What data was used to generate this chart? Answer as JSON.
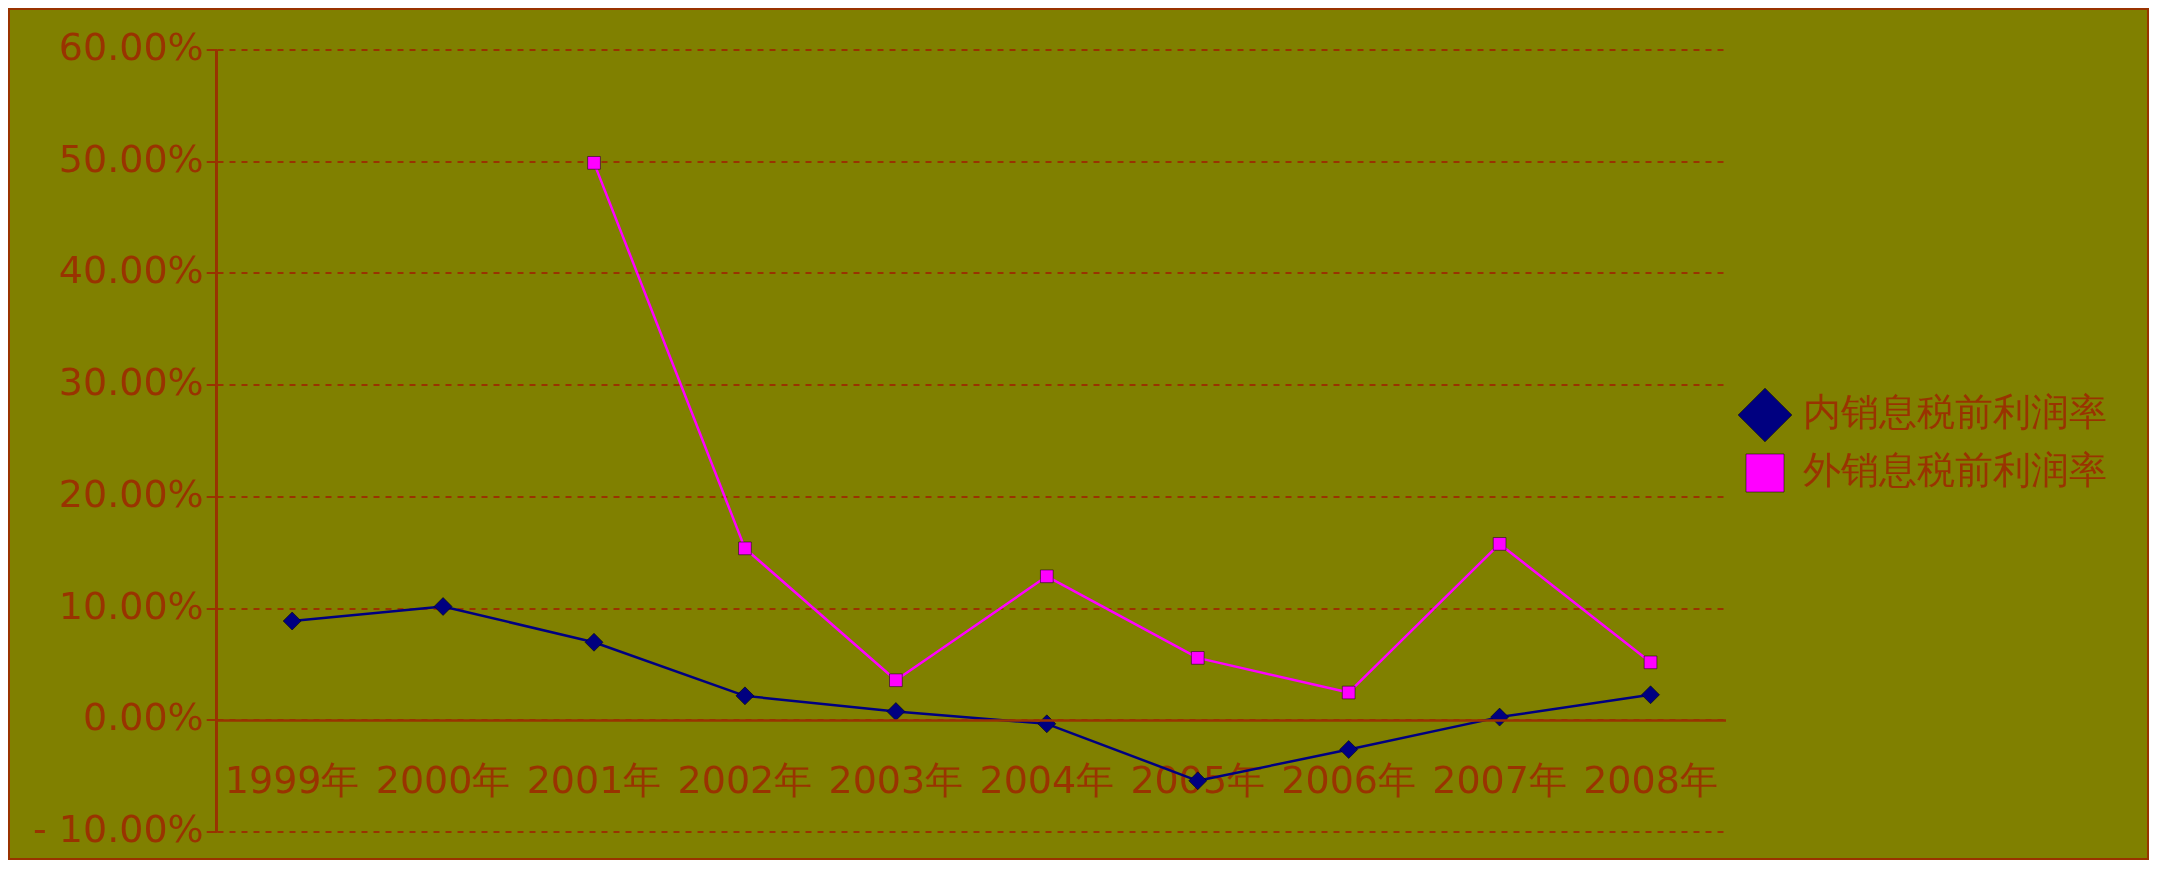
{
  "chart_data": {
    "type": "line",
    "categories": [
      "1999年",
      "2000年",
      "2001年",
      "2002年",
      "2003年",
      "2004年",
      "2005年",
      "2006年",
      "2007年",
      "2008年"
    ],
    "series": [
      {
        "name": "内销息税前利润率",
        "color": "#000080",
        "marker": "diamond",
        "values": [
          8.9,
          10.2,
          7.0,
          2.2,
          0.8,
          -0.3,
          -5.4,
          -2.6,
          0.3,
          2.3
        ]
      },
      {
        "name": "外销息税前利润率",
        "color": "#ff00ff",
        "marker": "square",
        "values": [
          null,
          null,
          49.9,
          15.4,
          3.6,
          12.9,
          5.6,
          2.5,
          15.8,
          5.2
        ]
      }
    ],
    "ylim": [
      -10,
      60
    ],
    "yticks": [
      {
        "value": -10,
        "label": "- 10.00%"
      },
      {
        "value": 0,
        "label": "0.00%"
      },
      {
        "value": 10,
        "label": "10.00%"
      },
      {
        "value": 20,
        "label": "20.00%"
      },
      {
        "value": 30,
        "label": "30.00%"
      },
      {
        "value": 40,
        "label": "40.00%"
      },
      {
        "value": 50,
        "label": "50.00%"
      },
      {
        "value": 60,
        "label": "60.00%"
      }
    ],
    "ref_lines": [
      {
        "axis": "y",
        "value": 0,
        "color": "#993300",
        "line_style": "solid"
      }
    ],
    "grid": "y",
    "legend": "right",
    "line_style": "solid"
  }
}
